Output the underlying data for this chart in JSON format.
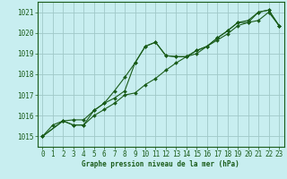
{
  "title": "Graphe pression niveau de la mer (hPa)",
  "background_color": "#c8eef0",
  "grid_color": "#a0c8c8",
  "line_color": "#1a5c1a",
  "xlim": [
    -0.5,
    23.5
  ],
  "ylim": [
    1014.5,
    1021.5
  ],
  "xticks": [
    0,
    1,
    2,
    3,
    4,
    5,
    6,
    7,
    8,
    9,
    10,
    11,
    12,
    13,
    14,
    15,
    16,
    17,
    18,
    19,
    20,
    21,
    22,
    23
  ],
  "yticks": [
    1015,
    1016,
    1017,
    1018,
    1019,
    1020,
    1021
  ],
  "series": [
    {
      "x": [
        0,
        1,
        2,
        3,
        4,
        5,
        6,
        7,
        8,
        9,
        10,
        11,
        12,
        13,
        14,
        15,
        16,
        17,
        18,
        19,
        20,
        21,
        22,
        23
      ],
      "y": [
        1015.0,
        1015.55,
        1015.75,
        1015.8,
        1015.8,
        1016.25,
        1016.6,
        1017.2,
        1017.85,
        1018.55,
        1019.35,
        1019.55,
        1018.9,
        1018.85,
        1018.85,
        1019.15,
        1019.35,
        1019.75,
        1020.1,
        1020.5,
        1020.5,
        1021.0,
        1021.1,
        1020.35
      ]
    },
    {
      "x": [
        0,
        2,
        3,
        4,
        5,
        6,
        7,
        8,
        9,
        10,
        11,
        12,
        13,
        14,
        15,
        16,
        17,
        18,
        19,
        20,
        21,
        22,
        23
      ],
      "y": [
        1015.0,
        1015.75,
        1015.55,
        1015.55,
        1016.25,
        1016.6,
        1016.85,
        1017.2,
        1018.55,
        1019.35,
        1019.55,
        1018.9,
        1018.85,
        1018.85,
        1019.15,
        1019.35,
        1019.75,
        1020.1,
        1020.5,
        1020.6,
        1021.0,
        1021.1,
        1020.35
      ]
    },
    {
      "x": [
        0,
        2,
        3,
        4,
        5,
        6,
        7,
        8,
        9,
        10,
        11,
        12,
        13,
        14,
        15,
        16,
        17,
        18,
        19,
        20,
        21,
        22,
        23
      ],
      "y": [
        1015.0,
        1015.75,
        1015.55,
        1015.55,
        1016.0,
        1016.3,
        1016.6,
        1017.0,
        1017.1,
        1017.5,
        1017.8,
        1018.2,
        1018.55,
        1018.85,
        1019.0,
        1019.35,
        1019.65,
        1019.95,
        1020.35,
        1020.5,
        1020.6,
        1021.0,
        1020.35
      ]
    }
  ]
}
